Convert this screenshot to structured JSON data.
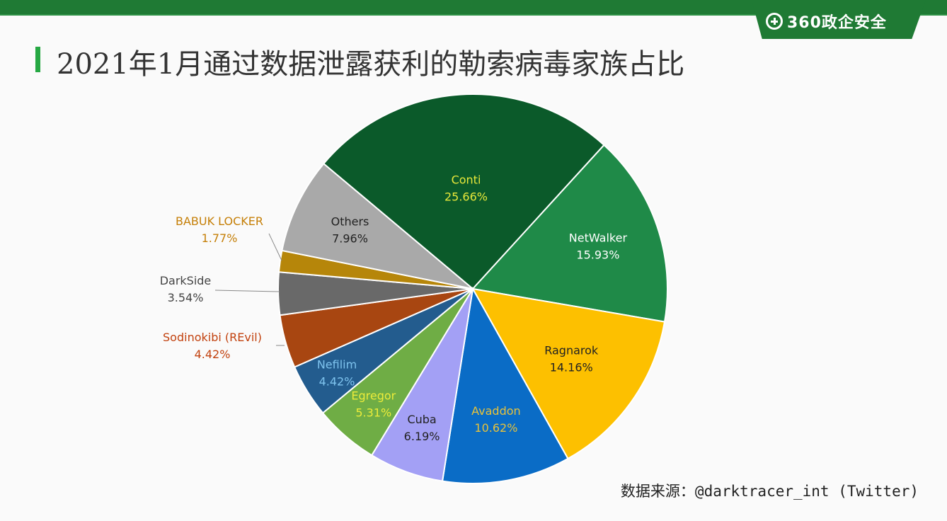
{
  "header": {
    "brand": "360政企安全",
    "title": "2021年1月通过数据泄露获利的勒索病毒家族占比"
  },
  "source_note": "数据来源：@darktracer_int (Twitter)",
  "colors": {
    "brand_green": "#1f7a34",
    "accent": "#26a843"
  },
  "chart_data": {
    "type": "pie",
    "title": "2021年1月通过数据泄露获利的勒索病毒家族占比",
    "slices": [
      {
        "name": "Conti",
        "value": 25.66,
        "label": "25.66%",
        "color": "#0b5a2a",
        "text_color": "#e8e83a"
      },
      {
        "name": "NetWalker",
        "value": 15.93,
        "label": "15.93%",
        "color": "#1f8a48",
        "text_color": "#ffffff"
      },
      {
        "name": "Ragnarok",
        "value": 14.16,
        "label": "14.16%",
        "color": "#fdc000",
        "text_color": "#222222"
      },
      {
        "name": "Avaddon",
        "value": 10.62,
        "label": "10.62%",
        "color": "#0a6cc6",
        "text_color": "#e8c23a"
      },
      {
        "name": "Cuba",
        "value": 6.19,
        "label": "6.19%",
        "color": "#a3a0f5",
        "text_color": "#222222"
      },
      {
        "name": "Egregor",
        "value": 5.31,
        "label": "5.31%",
        "color": "#6fad45",
        "text_color": "#ecec3a"
      },
      {
        "name": "Nefilim",
        "value": 4.42,
        "label": "4.42%",
        "color": "#235c8e",
        "text_color": "#7ec3ee"
      },
      {
        "name": "Sodinokibi (REvil)",
        "value": 4.42,
        "label": "4.42%",
        "color": "#a84611",
        "text_color": "#c2420f"
      },
      {
        "name": "DarkSide",
        "value": 3.54,
        "label": "3.54%",
        "color": "#696969",
        "text_color": "#444444"
      },
      {
        "name": "BABUK LOCKER",
        "value": 1.77,
        "label": "1.77%",
        "color": "#b6860a",
        "text_color": "#c57f07"
      },
      {
        "name": "Others",
        "value": 7.96,
        "label": "7.96%",
        "color": "#a9a9a9",
        "text_color": "#222222"
      }
    ]
  }
}
